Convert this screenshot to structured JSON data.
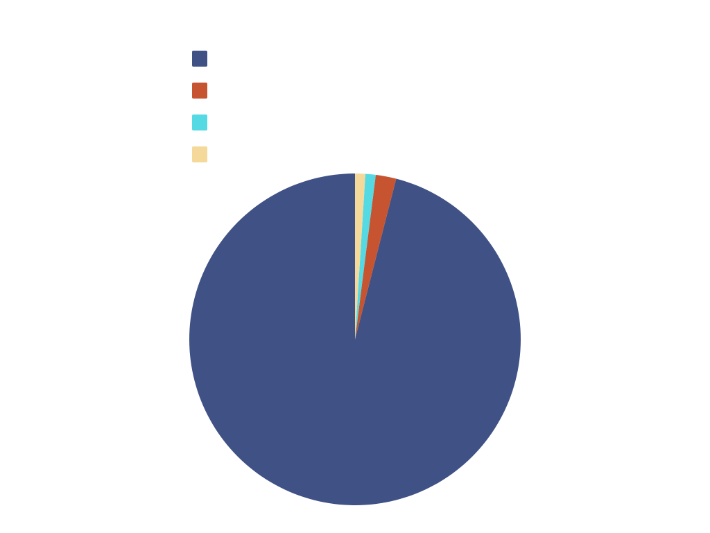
{
  "chart_data": {
    "type": "pie",
    "title": "",
    "legend_position": "top-left",
    "start_angle": "12-o-clock",
    "direction": "counter-clockwise",
    "series": [
      {
        "name": "",
        "value": 96.0,
        "color": "#3f5185"
      },
      {
        "name": "",
        "value": 2.0,
        "color": "#c75431"
      },
      {
        "name": "",
        "value": 1.0,
        "color": "#55d9e3"
      },
      {
        "name": "",
        "value": 1.0,
        "color": "#f4d99a"
      }
    ]
  }
}
